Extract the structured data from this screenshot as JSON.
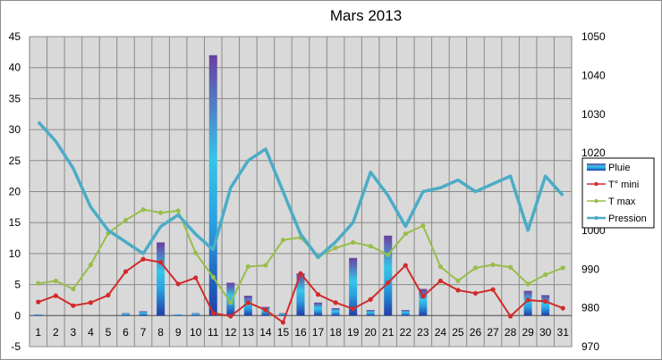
{
  "chart_data": {
    "type": "bar",
    "title": "Mars 2013",
    "xlabel": "",
    "ylabel": "",
    "categories": [
      "1",
      "2",
      "3",
      "4",
      "5",
      "6",
      "7",
      "8",
      "9",
      "10",
      "11",
      "12",
      "13",
      "14",
      "15",
      "16",
      "17",
      "18",
      "19",
      "20",
      "21",
      "22",
      "23",
      "24",
      "25",
      "26",
      "27",
      "28",
      "29",
      "30",
      "31"
    ],
    "ylim_left": [
      -5,
      45
    ],
    "yticks_left": [
      "-5",
      "0",
      "5",
      "10",
      "15",
      "20",
      "25",
      "30",
      "35",
      "40",
      "45"
    ],
    "ylim_right": [
      970,
      1050
    ],
    "yticks_right": [
      "970",
      "980",
      "990",
      "1000",
      "1010",
      "1020",
      "1030",
      "1040",
      "1050"
    ],
    "grid": true,
    "legend_position": "right",
    "series": [
      {
        "name": "Pluie",
        "type": "bar",
        "axis": "left",
        "color": "#2f7fd0",
        "values": [
          0.2,
          0,
          0,
          0,
          0,
          0.4,
          0.7,
          11.8,
          0.2,
          0.4,
          42,
          5.3,
          3.2,
          1.4,
          0.4,
          6.8,
          2.1,
          1.2,
          9.3,
          0.9,
          12.9,
          0.9,
          4.3,
          0,
          0,
          0,
          0,
          0,
          4,
          3.3,
          0
        ]
      },
      {
        "name": "T° mini",
        "type": "line",
        "axis": "left",
        "color": "#d22a2a",
        "values": [
          2.2,
          3.2,
          1.6,
          2.1,
          3.3,
          7.1,
          9.1,
          8.6,
          5.1,
          6.1,
          0.4,
          -0.1,
          2.1,
          0.9,
          -1.1,
          6.8,
          3.4,
          2.1,
          1.1,
          2.6,
          5.3,
          8.1,
          3.1,
          5.6,
          4.1,
          3.6,
          4.2,
          -0.1,
          2.5,
          2.3,
          1.2
        ]
      },
      {
        "name": "T max",
        "type": "line",
        "axis": "left",
        "color": "#98be4a",
        "values": [
          5.2,
          5.6,
          4.3,
          8.2,
          13.3,
          15.4,
          17.1,
          16.6,
          16.9,
          10.1,
          6.2,
          2.1,
          7.9,
          8.1,
          12.2,
          12.6,
          9.5,
          10.9,
          11.8,
          11.2,
          9.8,
          13.2,
          14.5,
          7.9,
          5.6,
          7.7,
          8.2,
          7.8,
          5.1,
          6.6,
          7.7
        ]
      },
      {
        "name": "Pression",
        "type": "line",
        "axis": "right",
        "color": "#4bacc6",
        "values": [
          1028,
          1023,
          1016,
          1006,
          1000,
          997,
          994,
          1001,
          1004,
          999,
          995,
          1011,
          1018,
          1021,
          1010,
          999,
          993,
          997,
          1002,
          1015,
          1009,
          1001,
          1010,
          1011,
          1013,
          1010,
          1012,
          1014,
          1000,
          1014,
          1009
        ]
      }
    ]
  }
}
